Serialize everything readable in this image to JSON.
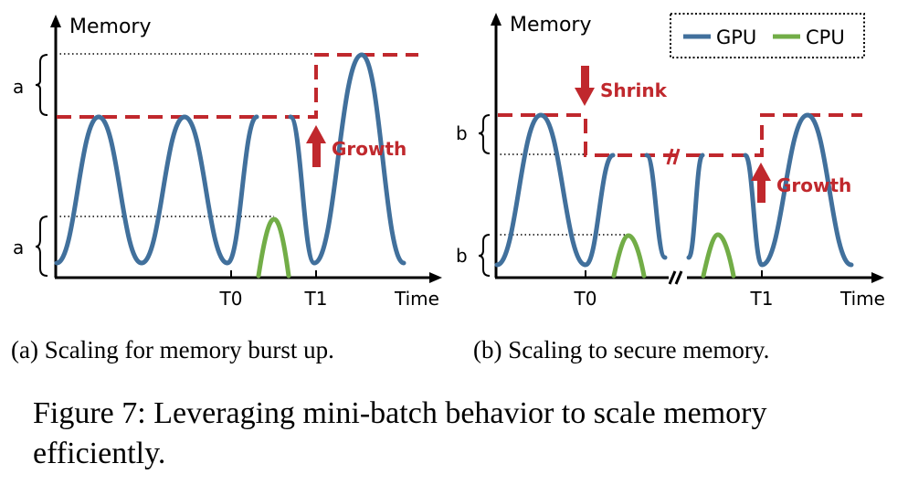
{
  "panel_a": {
    "y_axis_label": "Memory",
    "x_axis_label": "Time",
    "tick_t0": "T0",
    "tick_t1": "T1",
    "brace_upper_label": "a",
    "brace_lower_label": "a",
    "growth_label": "Growth",
    "caption": "(a) Scaling for memory burst up."
  },
  "panel_b": {
    "y_axis_label": "Memory",
    "x_axis_label": "Time",
    "tick_t0": "T0",
    "tick_t1": "T1",
    "brace_upper_label": "b",
    "brace_lower_label": "b",
    "shrink_label": "Shrink",
    "growth_label": "Growth",
    "caption": "(b) Scaling to secure memory."
  },
  "legend": {
    "gpu_label": "GPU",
    "cpu_label": "CPU"
  },
  "colors": {
    "gpu": "#41709c",
    "cpu": "#72ad47",
    "limit": "#c0282d"
  },
  "figure_caption_line1": "Figure 7: Leveraging mini-batch behavior to scale memory",
  "figure_caption_line2": "efficiently."
}
